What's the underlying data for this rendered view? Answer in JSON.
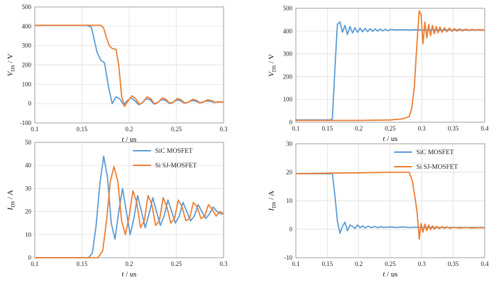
{
  "figure": {
    "xlabel_unit": "us",
    "series_names": [
      "SiC MOSFET",
      "Si SJ-MOSFET"
    ],
    "colors": {
      "sic": "#5b9bd5",
      "si": "#ed7d31",
      "grid": "#d9d9d9"
    }
  },
  "chart_data": [
    {
      "id": "vds_turnoff",
      "type": "line",
      "ylabel_main": "V",
      "ylabel_sub": "DS",
      "ylabel_unit": "V",
      "xlabel": "t / us",
      "xlim": [
        0.1,
        0.3
      ],
      "ylim": [
        -100,
        500
      ],
      "xticks": [
        "0.1",
        "0.15",
        "0.2",
        "0.25",
        "0.3"
      ],
      "yticks": [
        "-100",
        "0",
        "100",
        "200",
        "300",
        "400",
        "500"
      ],
      "legend": false,
      "series": [
        {
          "name": "SiC MOSFET",
          "x": [
            0.1,
            0.155,
            0.16,
            0.163,
            0.166,
            0.17,
            0.174,
            0.178,
            0.182,
            0.186,
            0.19,
            0.194,
            0.198,
            0.202,
            0.206,
            0.21,
            0.214,
            0.218,
            0.222,
            0.226,
            0.23,
            0.234,
            0.238,
            0.242,
            0.246,
            0.25,
            0.254,
            0.258,
            0.262,
            0.266,
            0.27,
            0.274,
            0.278,
            0.282,
            0.286,
            0.29,
            0.295,
            0.3
          ],
          "values": [
            405,
            405,
            395,
            330,
            265,
            225,
            210,
            90,
            0,
            35,
            25,
            -5,
            15,
            30,
            15,
            -5,
            5,
            25,
            20,
            0,
            5,
            20,
            18,
            3,
            5,
            18,
            16,
            4,
            6,
            16,
            14,
            5,
            7,
            14,
            12,
            6,
            9,
            8
          ]
        },
        {
          "name": "Si SJ-MOSFET",
          "x": [
            0.1,
            0.17,
            0.173,
            0.176,
            0.179,
            0.182,
            0.186,
            0.189,
            0.192,
            0.195,
            0.199,
            0.203,
            0.207,
            0.211,
            0.215,
            0.219,
            0.223,
            0.227,
            0.231,
            0.235,
            0.239,
            0.243,
            0.247,
            0.251,
            0.255,
            0.259,
            0.263,
            0.267,
            0.271,
            0.275,
            0.279,
            0.283,
            0.287,
            0.291,
            0.295,
            0.3
          ],
          "values": [
            405,
            405,
            390,
            340,
            300,
            285,
            280,
            200,
            40,
            -15,
            15,
            40,
            25,
            -5,
            10,
            35,
            25,
            -3,
            8,
            30,
            22,
            0,
            8,
            26,
            20,
            2,
            8,
            22,
            18,
            4,
            8,
            20,
            16,
            6,
            9,
            8
          ]
        }
      ]
    },
    {
      "id": "vds_turnon",
      "type": "line",
      "ylabel_main": "V",
      "ylabel_sub": "DS",
      "ylabel_unit": "V",
      "xlabel": "t / us",
      "xlim": [
        0.1,
        0.4
      ],
      "ylim": [
        0,
        500
      ],
      "xticks": [
        "0.1",
        "0.15",
        "0.2",
        "0.25",
        "0.3",
        "0.35",
        "0.4"
      ],
      "yticks": [
        "0",
        "100",
        "200",
        "300",
        "400",
        "500"
      ],
      "legend": false,
      "series": [
        {
          "name": "SiC MOSFET",
          "x": [
            0.1,
            0.155,
            0.158,
            0.162,
            0.166,
            0.17,
            0.174,
            0.178,
            0.182,
            0.186,
            0.19,
            0.194,
            0.198,
            0.202,
            0.206,
            0.21,
            0.214,
            0.218,
            0.222,
            0.226,
            0.23,
            0.234,
            0.238,
            0.242,
            0.246,
            0.25,
            0.26,
            0.27,
            0.28,
            0.29,
            0.3,
            0.35,
            0.4
          ],
          "values": [
            10,
            10,
            15,
            230,
            430,
            440,
            395,
            425,
            385,
            420,
            392,
            415,
            395,
            413,
            397,
            412,
            398,
            411,
            399,
            410,
            400,
            409,
            401,
            408,
            402,
            407,
            405,
            406,
            405,
            406,
            405,
            405,
            405
          ]
        },
        {
          "name": "Si SJ-MOSFET",
          "x": [
            0.1,
            0.2,
            0.25,
            0.27,
            0.28,
            0.284,
            0.288,
            0.292,
            0.296,
            0.299,
            0.302,
            0.305,
            0.308,
            0.311,
            0.314,
            0.317,
            0.32,
            0.323,
            0.326,
            0.329,
            0.332,
            0.336,
            0.34,
            0.344,
            0.348,
            0.352,
            0.356,
            0.36,
            0.365,
            0.37,
            0.375,
            0.38,
            0.385,
            0.39,
            0.395,
            0.4
          ],
          "values": [
            8,
            8,
            10,
            15,
            25,
            60,
            150,
            330,
            490,
            470,
            345,
            440,
            370,
            430,
            380,
            425,
            388,
            420,
            392,
            418,
            395,
            415,
            397,
            413,
            399,
            411,
            400,
            410,
            401,
            409,
            402,
            408,
            403,
            407,
            405,
            405
          ]
        }
      ]
    },
    {
      "id": "ids_turnoff",
      "type": "line",
      "ylabel_main": "I",
      "ylabel_sub": "DS",
      "ylabel_unit": "A",
      "xlabel": "t / us",
      "xlim": [
        0.1,
        0.3
      ],
      "ylim": [
        0,
        50
      ],
      "xticks": [
        "0.1",
        "0.15",
        "0.2",
        "0.25",
        "0.3"
      ],
      "yticks": [
        "0",
        "10",
        "20",
        "30",
        "40",
        "50"
      ],
      "legend": true,
      "legend_position": "top-right",
      "series": [
        {
          "name": "SiC MOSFET",
          "x": [
            0.1,
            0.157,
            0.161,
            0.165,
            0.169,
            0.173,
            0.177,
            0.181,
            0.185,
            0.189,
            0.193,
            0.197,
            0.201,
            0.205,
            0.209,
            0.213,
            0.217,
            0.221,
            0.225,
            0.229,
            0.233,
            0.237,
            0.241,
            0.245,
            0.249,
            0.253,
            0.257,
            0.261,
            0.265,
            0.269,
            0.273,
            0.277,
            0.281,
            0.285,
            0.289,
            0.293,
            0.297,
            0.3
          ],
          "values": [
            0,
            0,
            2,
            14,
            32,
            44,
            35,
            15,
            8,
            20,
            30,
            20,
            10,
            17,
            27,
            20,
            13,
            19,
            26,
            20,
            14,
            18,
            25,
            20,
            15,
            18,
            24,
            20,
            16,
            18,
            23,
            20,
            17,
            19,
            22,
            20,
            19,
            19
          ]
        },
        {
          "name": "Si SJ-MOSFET",
          "x": [
            0.1,
            0.167,
            0.172,
            0.176,
            0.18,
            0.184,
            0.188,
            0.192,
            0.196,
            0.2,
            0.204,
            0.208,
            0.212,
            0.216,
            0.22,
            0.224,
            0.228,
            0.232,
            0.236,
            0.24,
            0.244,
            0.248,
            0.252,
            0.256,
            0.26,
            0.264,
            0.268,
            0.272,
            0.276,
            0.28,
            0.284,
            0.288,
            0.292,
            0.296,
            0.3
          ],
          "values": [
            0,
            0,
            3,
            16,
            33,
            39.5,
            33,
            16,
            10,
            18,
            29,
            24,
            13,
            16,
            27,
            23,
            14,
            16,
            26,
            22,
            15,
            17,
            25,
            22,
            16,
            17,
            24,
            22,
            17,
            18,
            23,
            21,
            18,
            20,
            19
          ]
        }
      ]
    },
    {
      "id": "ids_turnon",
      "type": "line",
      "ylabel_main": "I",
      "ylabel_sub": "DS",
      "ylabel_unit": "A",
      "xlabel": "t / us",
      "xlim": [
        0.1,
        0.4
      ],
      "ylim": [
        -10,
        30
      ],
      "xticks": [
        "0.1",
        "0.15",
        "0.2",
        "0.25",
        "0.3",
        "0.35",
        "0.4"
      ],
      "yticks": [
        "-10",
        "0",
        "10",
        "20",
        "30"
      ],
      "legend": true,
      "legend_position": "top-right",
      "series": [
        {
          "name": "SiC MOSFET",
          "x": [
            0.1,
            0.155,
            0.158,
            0.162,
            0.166,
            0.17,
            0.174,
            0.178,
            0.182,
            0.186,
            0.19,
            0.194,
            0.198,
            0.202,
            0.206,
            0.21,
            0.215,
            0.22,
            0.225,
            0.23,
            0.235,
            0.24,
            0.25,
            0.26,
            0.27,
            0.28,
            0.29,
            0.3,
            0.35,
            0.4
          ],
          "values": [
            19.5,
            19.5,
            19.5,
            12,
            3,
            -1.5,
            1,
            2.5,
            -0.5,
            1.5,
            1,
            0.3,
            1.5,
            0.5,
            1.2,
            0.4,
            1.1,
            0.5,
            1,
            0.5,
            0.9,
            0.6,
            0.8,
            0.6,
            0.8,
            0.6,
            0.7,
            0.6,
            0.6,
            0.6
          ]
        },
        {
          "name": "Si SJ-MOSFET",
          "x": [
            0.1,
            0.2,
            0.25,
            0.28,
            0.285,
            0.29,
            0.293,
            0.296,
            0.299,
            0.302,
            0.305,
            0.308,
            0.311,
            0.314,
            0.317,
            0.32,
            0.324,
            0.328,
            0.332,
            0.336,
            0.34,
            0.345,
            0.35,
            0.36,
            0.37,
            0.38,
            0.39,
            0.4
          ],
          "values": [
            19.5,
            19.8,
            20,
            20,
            17,
            10,
            5,
            -3.5,
            2,
            -1,
            1.8,
            -0.5,
            1.5,
            -0.2,
            1.2,
            0,
            1,
            0.2,
            0.9,
            0.3,
            0.8,
            0.3,
            0.7,
            0.4,
            0.6,
            0.4,
            0.5,
            0.5
          ]
        }
      ]
    }
  ]
}
